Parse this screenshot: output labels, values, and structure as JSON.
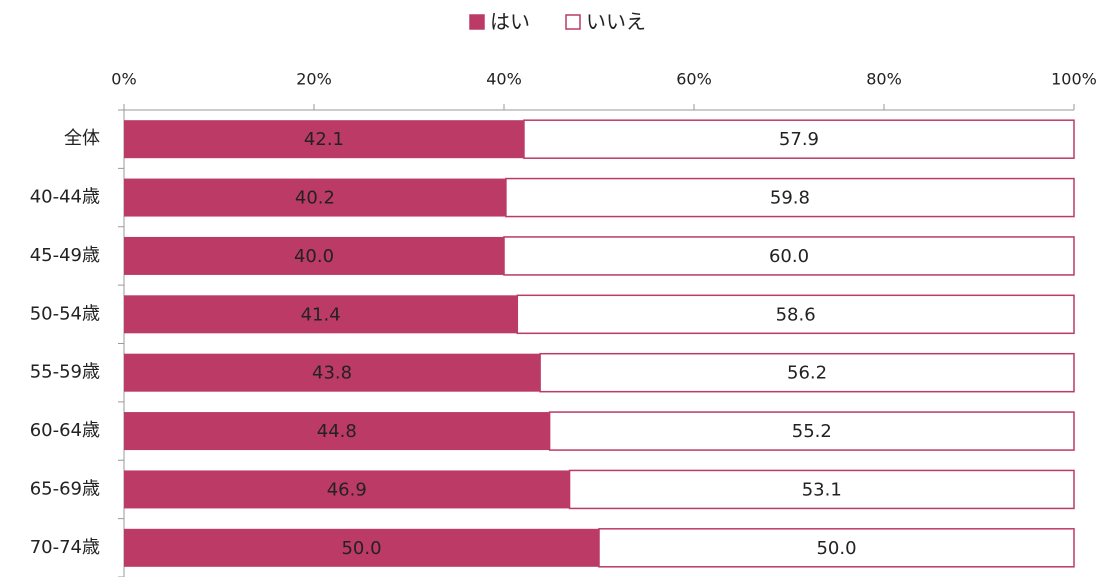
{
  "chart_data": {
    "type": "bar",
    "orientation": "horizontal",
    "stacked": true,
    "categories": [
      "全体",
      "40-44歳",
      "45-49歳",
      "50-54歳",
      "55-59歳",
      "60-64歳",
      "65-69歳",
      "70-74歳"
    ],
    "series": [
      {
        "name": "はい",
        "color": "#bc3a66",
        "values": [
          42.1,
          40.2,
          40.0,
          41.4,
          43.8,
          44.8,
          46.9,
          50.0
        ],
        "value_labels": [
          "42.1",
          "40.2",
          "40.0",
          "41.4",
          "43.8",
          "44.8",
          "46.9",
          "50.0"
        ]
      },
      {
        "name": "いいえ",
        "color": "#ffffff",
        "values": [
          57.9,
          59.8,
          60.0,
          58.6,
          56.2,
          55.2,
          53.1,
          50.0
        ],
        "value_labels": [
          "57.9",
          "59.8",
          "60.0",
          "58.6",
          "56.2",
          "55.2",
          "53.1",
          "50.0"
        ]
      }
    ],
    "xlim": [
      0,
      100
    ],
    "xticks": [
      {
        "value": 0,
        "label": "0%"
      },
      {
        "value": 20,
        "label": "20%"
      },
      {
        "value": 40,
        "label": "40%"
      },
      {
        "value": 60,
        "label": "60%"
      },
      {
        "value": 80,
        "label": "80%"
      },
      {
        "value": 100,
        "label": "100%"
      }
    ],
    "legend": "top"
  }
}
